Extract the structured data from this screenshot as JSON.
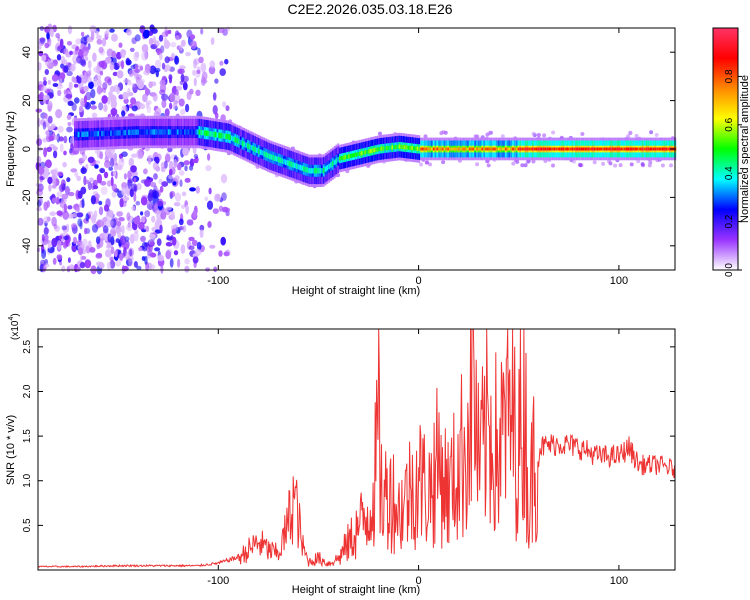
{
  "title": "C2E2.2026.035.03.18.E26",
  "chart_data": [
    {
      "type": "heatmap",
      "xlabel": "Height of straight line (km)",
      "ylabel": "Frequency (Hz)",
      "xlim": [
        -190,
        128
      ],
      "ylim": [
        -50,
        50
      ],
      "xticks": [
        -100,
        0,
        100
      ],
      "yticks": [
        -40,
        -20,
        0,
        20,
        40
      ],
      "colorbar": {
        "label": "Normalized spectral amplitude",
        "range": [
          0,
          1
        ],
        "ticks": [
          0.0,
          0.2,
          0.4,
          0.6,
          0.8
        ],
        "colors": [
          "#ffffff",
          "#9933ff",
          "#0000ff",
          "#00ffff",
          "#00ff00",
          "#ffff00",
          "#ff8800",
          "#ff0000",
          "#ff3366"
        ]
      },
      "ridge": {
        "x": [
          -170,
          -140,
          -110,
          -95,
          -85,
          -75,
          -65,
          -55,
          -48,
          -40,
          -30,
          -20,
          -10,
          0,
          20,
          60,
          100,
          128
        ],
        "y": [
          6,
          7,
          7,
          5,
          1,
          -3,
          -6,
          -9,
          -9,
          -4,
          -2,
          0,
          1,
          0,
          0,
          0,
          0,
          0
        ]
      }
    },
    {
      "type": "line",
      "xlabel": "Height of straight line (km)",
      "ylabel": "SNR (10 * v/v)",
      "y_multiplier_label": "(x10",
      "y_multiplier_exp": "4",
      "xlim": [
        -190,
        128
      ],
      "ylim": [
        0,
        27000
      ],
      "xticks": [
        -100,
        0,
        100
      ],
      "yticks": [
        5000,
        10000,
        15000,
        20000,
        25000
      ],
      "ytick_labels": [
        "0.5",
        "1.0",
        "1.5",
        "2.0",
        "2.5"
      ],
      "color": "#ee3333",
      "series": [
        {
          "x": [
            -190,
            -170,
            -150,
            -130,
            -110,
            -100,
            -90,
            -85,
            -80,
            -75,
            -70,
            -66,
            -62,
            -58,
            -55,
            -50,
            -45,
            -40,
            -35,
            -30,
            -25,
            -22,
            -20,
            -18,
            -15,
            -10,
            -5,
            0,
            5,
            10,
            15,
            20,
            25,
            27,
            30,
            35,
            40,
            45,
            50,
            53,
            55,
            58,
            60,
            70,
            80,
            90,
            100,
            105,
            110,
            120,
            128
          ],
          "y": [
            400,
            400,
            500,
            500,
            500,
            800,
            1500,
            2500,
            3500,
            2500,
            2000,
            5000,
            9500,
            3000,
            1000,
            1500,
            800,
            1500,
            3500,
            5500,
            7500,
            11000,
            19000,
            8000,
            11000,
            7500,
            10000,
            12000,
            10000,
            14000,
            10000,
            13500,
            18000,
            27000,
            13000,
            19000,
            15000,
            21000,
            16000,
            24000,
            6500,
            17000,
            14000,
            14500,
            14000,
            13000,
            13000,
            14000,
            12000,
            12000,
            11500
          ]
        }
      ]
    }
  ]
}
